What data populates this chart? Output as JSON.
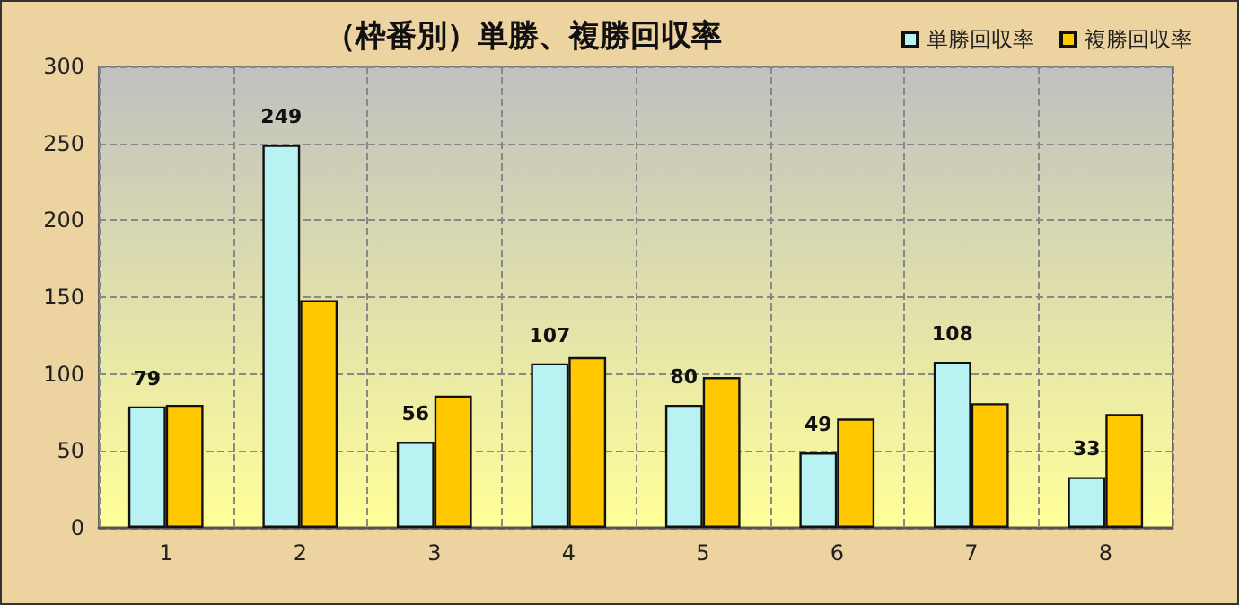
{
  "chart_data": {
    "type": "bar",
    "title": "（枠番別）単勝、複勝回収率",
    "categories": [
      "1",
      "2",
      "3",
      "4",
      "5",
      "6",
      "7",
      "8"
    ],
    "series": [
      {
        "name": "単勝回収率",
        "color": "#b8f2f2",
        "values": [
          79,
          249,
          56,
          107,
          80,
          49,
          108,
          33
        ],
        "value_labels": [
          "79",
          "249",
          "56",
          "107",
          "80",
          "49",
          "108",
          "33"
        ]
      },
      {
        "name": "複勝回収率",
        "color": "#ffc800",
        "values": [
          80,
          148,
          86,
          111,
          98,
          71,
          81,
          74
        ]
      }
    ],
    "ylim": [
      0,
      300
    ],
    "yticks": [
      0,
      50,
      100,
      150,
      200,
      250,
      300
    ],
    "grid": true,
    "legend": "top right"
  }
}
